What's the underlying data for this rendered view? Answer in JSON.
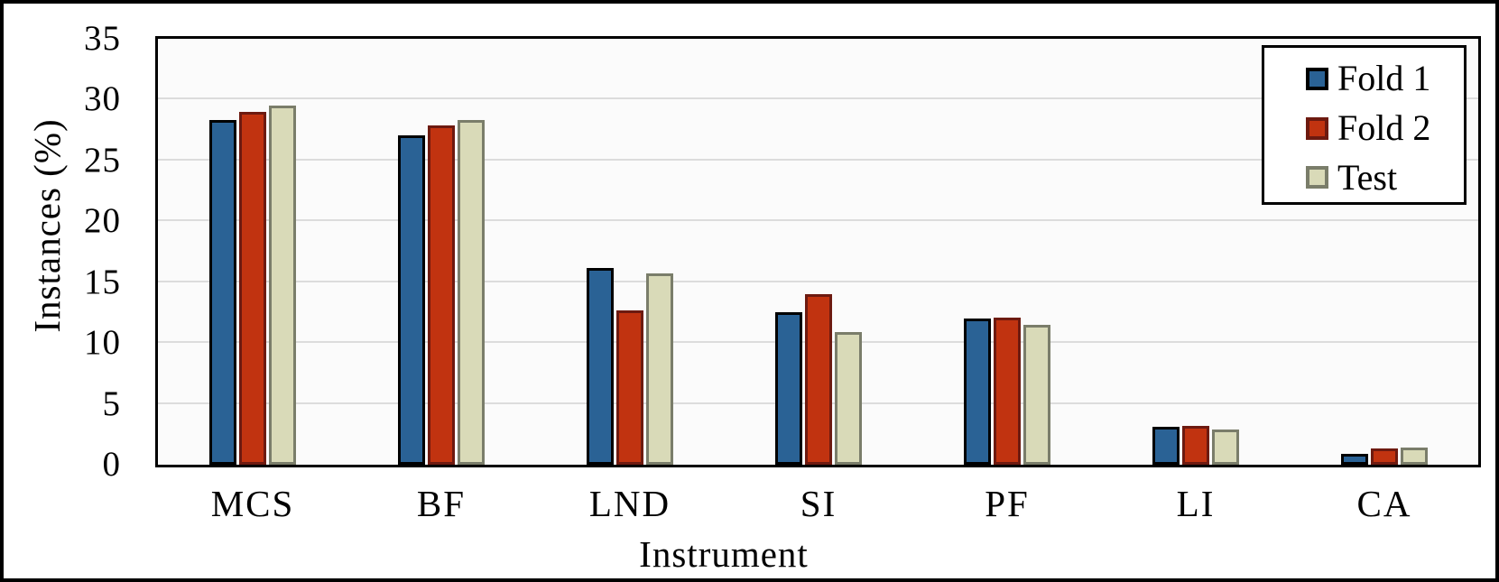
{
  "chart_data": {
    "type": "bar",
    "title": "",
    "xlabel": "Instrument",
    "ylabel": "Instances (%)",
    "categories": [
      "MCS",
      "BF",
      "LND",
      "SI",
      "PF",
      "LI",
      "CA"
    ],
    "series": [
      {
        "name": "Fold 1",
        "fill": "#2a6295",
        "stroke": "#000000",
        "values": [
          28.3,
          27.1,
          16.2,
          12.5,
          12.0,
          3.1,
          0.9
        ]
      },
      {
        "name": "Fold 2",
        "fill": "#c13310",
        "stroke": "#6d1a10",
        "values": [
          29.0,
          27.9,
          12.7,
          14.0,
          12.1,
          3.2,
          1.3
        ]
      },
      {
        "name": "Test",
        "fill": "#d9dab8",
        "stroke": "#7a7d6a",
        "values": [
          29.5,
          28.3,
          15.7,
          10.9,
          11.5,
          2.9,
          1.4
        ]
      }
    ],
    "ylim": [
      0,
      35
    ],
    "ytick_step": 5,
    "yticks": [
      "0",
      "5",
      "10",
      "15",
      "20",
      "25",
      "30",
      "35"
    ],
    "grid": "horizontal-only",
    "legend_position": "top-right-inside-plot",
    "colors": {
      "gridline": "#dcdcdc",
      "plot_background": "#fbfbfb",
      "axis": "#000000",
      "figure_border": "#000000",
      "text": "#000000"
    }
  }
}
